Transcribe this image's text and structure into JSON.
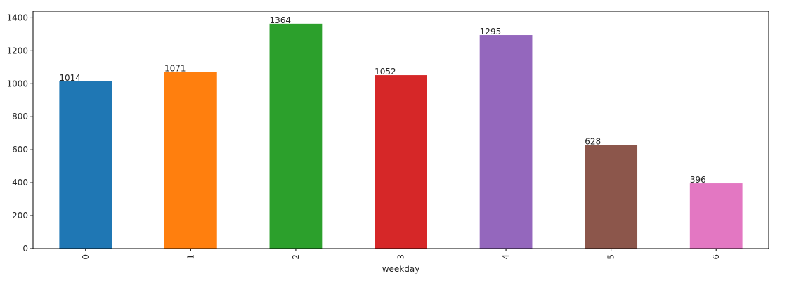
{
  "chart_data": {
    "type": "bar",
    "categories": [
      "0",
      "1",
      "2",
      "3",
      "4",
      "5",
      "6"
    ],
    "values": [
      1014,
      1071,
      1364,
      1052,
      1295,
      628,
      396
    ],
    "data_labels": [
      "1014",
      "1071",
      "1364",
      "1052",
      "1295",
      "628",
      "396"
    ],
    "colors": [
      "#1f77b4",
      "#ff7f0e",
      "#2ca02c",
      "#d62728",
      "#9467bd",
      "#8c564b",
      "#e377c2"
    ],
    "title": "",
    "xlabel": "weekday",
    "ylabel": "",
    "ylim": [
      0,
      1440
    ],
    "yticks": [
      0,
      200,
      400,
      600,
      800,
      1000,
      1200,
      1400
    ],
    "ytick_labels": [
      "0",
      "200",
      "400",
      "600",
      "800",
      "1000",
      "1200",
      "1400"
    ],
    "xtick_rotation": "vertical",
    "grid": false,
    "legend": "none"
  }
}
